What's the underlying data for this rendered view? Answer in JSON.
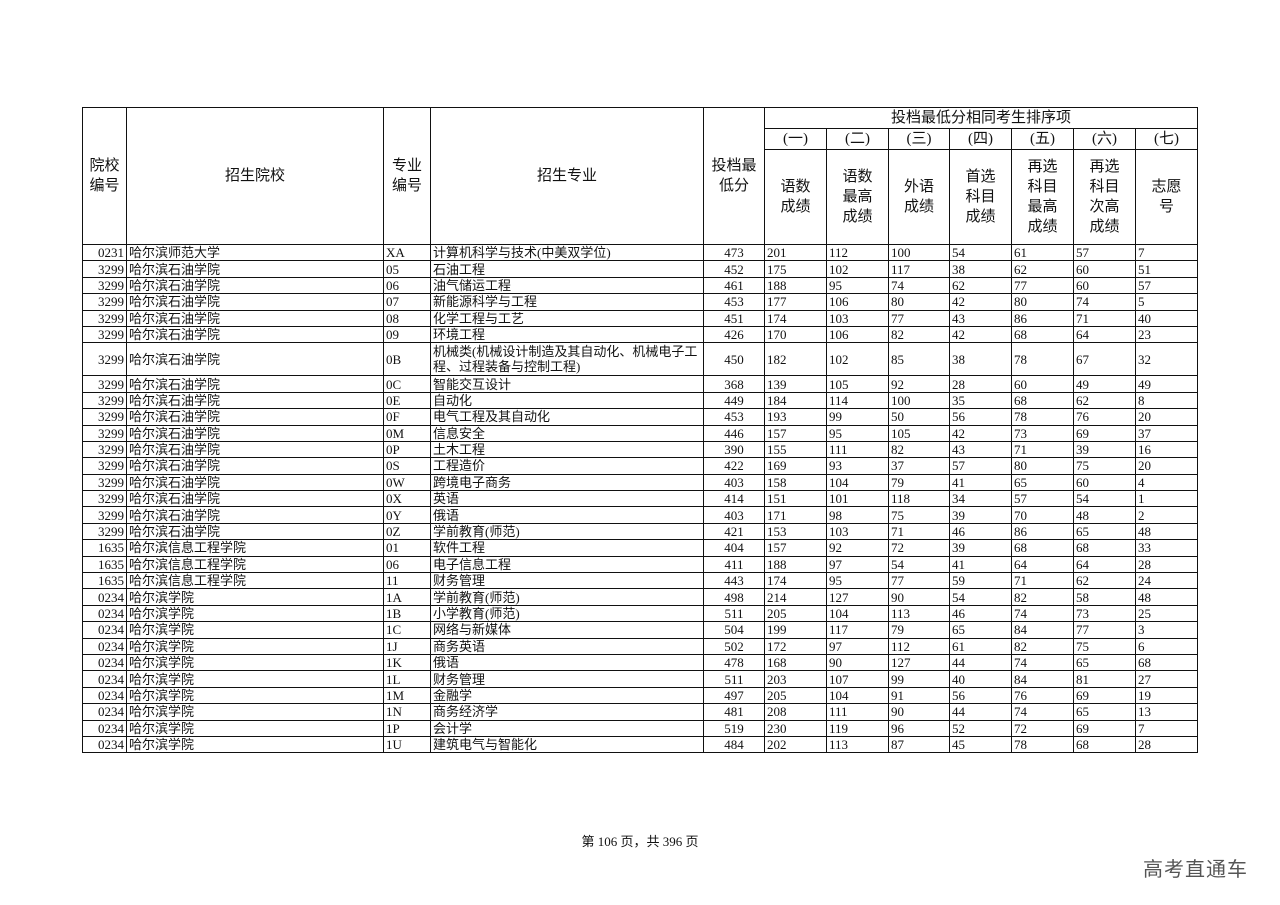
{
  "header": {
    "school_code": "院校编号",
    "school": "招生院校",
    "major_code": "专业编号",
    "major": "招生专业",
    "min_score": "投档最低分",
    "tiebreak_group": "投档最低分相同考生排序项",
    "tiebreak_orders": [
      "(一)",
      "(二)",
      "(三)",
      "(四)",
      "(五)",
      "(六)",
      "(七)"
    ],
    "tiebreak_labels": [
      "语数成绩",
      "语数最高成绩",
      "外语成绩",
      "首选科目成绩",
      "再选科目最高成绩",
      "再选科目次高成绩",
      "志愿号"
    ]
  },
  "rows": [
    [
      "0231",
      "哈尔滨师范大学",
      "XA",
      "计算机科学与技术(中美双学位)",
      "473",
      "201",
      "112",
      "100",
      "54",
      "61",
      "57",
      "7"
    ],
    [
      "3299",
      "哈尔滨石油学院",
      "05",
      "石油工程",
      "452",
      "175",
      "102",
      "117",
      "38",
      "62",
      "60",
      "51"
    ],
    [
      "3299",
      "哈尔滨石油学院",
      "06",
      "油气储运工程",
      "461",
      "188",
      "95",
      "74",
      "62",
      "77",
      "60",
      "57"
    ],
    [
      "3299",
      "哈尔滨石油学院",
      "07",
      "新能源科学与工程",
      "453",
      "177",
      "106",
      "80",
      "42",
      "80",
      "74",
      "5"
    ],
    [
      "3299",
      "哈尔滨石油学院",
      "08",
      "化学工程与工艺",
      "451",
      "174",
      "103",
      "77",
      "43",
      "86",
      "71",
      "40"
    ],
    [
      "3299",
      "哈尔滨石油学院",
      "09",
      "环境工程",
      "426",
      "170",
      "106",
      "82",
      "42",
      "68",
      "64",
      "23"
    ],
    [
      "3299",
      "哈尔滨石油学院",
      "0B",
      "机械类(机械设计制造及其自动化、机械电子工程、过程装备与控制工程)",
      "450",
      "182",
      "102",
      "85",
      "38",
      "78",
      "67",
      "32"
    ],
    [
      "3299",
      "哈尔滨石油学院",
      "0C",
      "智能交互设计",
      "368",
      "139",
      "105",
      "92",
      "28",
      "60",
      "49",
      "49"
    ],
    [
      "3299",
      "哈尔滨石油学院",
      "0E",
      "自动化",
      "449",
      "184",
      "114",
      "100",
      "35",
      "68",
      "62",
      "8"
    ],
    [
      "3299",
      "哈尔滨石油学院",
      "0F",
      "电气工程及其自动化",
      "453",
      "193",
      "99",
      "50",
      "56",
      "78",
      "76",
      "20"
    ],
    [
      "3299",
      "哈尔滨石油学院",
      "0M",
      "信息安全",
      "446",
      "157",
      "95",
      "105",
      "42",
      "73",
      "69",
      "37"
    ],
    [
      "3299",
      "哈尔滨石油学院",
      "0P",
      "土木工程",
      "390",
      "155",
      "111",
      "82",
      "43",
      "71",
      "39",
      "16"
    ],
    [
      "3299",
      "哈尔滨石油学院",
      "0S",
      "工程造价",
      "422",
      "169",
      "93",
      "37",
      "57",
      "80",
      "75",
      "20"
    ],
    [
      "3299",
      "哈尔滨石油学院",
      "0W",
      "跨境电子商务",
      "403",
      "158",
      "104",
      "79",
      "41",
      "65",
      "60",
      "4"
    ],
    [
      "3299",
      "哈尔滨石油学院",
      "0X",
      "英语",
      "414",
      "151",
      "101",
      "118",
      "34",
      "57",
      "54",
      "1"
    ],
    [
      "3299",
      "哈尔滨石油学院",
      "0Y",
      "俄语",
      "403",
      "171",
      "98",
      "75",
      "39",
      "70",
      "48",
      "2"
    ],
    [
      "3299",
      "哈尔滨石油学院",
      "0Z",
      "学前教育(师范)",
      "421",
      "153",
      "103",
      "71",
      "46",
      "86",
      "65",
      "48"
    ],
    [
      "1635",
      "哈尔滨信息工程学院",
      "01",
      "软件工程",
      "404",
      "157",
      "92",
      "72",
      "39",
      "68",
      "68",
      "33"
    ],
    [
      "1635",
      "哈尔滨信息工程学院",
      "06",
      "电子信息工程",
      "411",
      "188",
      "97",
      "54",
      "41",
      "64",
      "64",
      "28"
    ],
    [
      "1635",
      "哈尔滨信息工程学院",
      "11",
      "财务管理",
      "443",
      "174",
      "95",
      "77",
      "59",
      "71",
      "62",
      "24"
    ],
    [
      "0234",
      "哈尔滨学院",
      "1A",
      "学前教育(师范)",
      "498",
      "214",
      "127",
      "90",
      "54",
      "82",
      "58",
      "48"
    ],
    [
      "0234",
      "哈尔滨学院",
      "1B",
      "小学教育(师范)",
      "511",
      "205",
      "104",
      "113",
      "46",
      "74",
      "73",
      "25"
    ],
    [
      "0234",
      "哈尔滨学院",
      "1C",
      "网络与新媒体",
      "504",
      "199",
      "117",
      "79",
      "65",
      "84",
      "77",
      "3"
    ],
    [
      "0234",
      "哈尔滨学院",
      "1J",
      "商务英语",
      "502",
      "172",
      "97",
      "112",
      "61",
      "82",
      "75",
      "6"
    ],
    [
      "0234",
      "哈尔滨学院",
      "1K",
      "俄语",
      "478",
      "168",
      "90",
      "127",
      "44",
      "74",
      "65",
      "68"
    ],
    [
      "0234",
      "哈尔滨学院",
      "1L",
      "财务管理",
      "511",
      "203",
      "107",
      "99",
      "40",
      "84",
      "81",
      "27"
    ],
    [
      "0234",
      "哈尔滨学院",
      "1M",
      "金融学",
      "497",
      "205",
      "104",
      "91",
      "56",
      "76",
      "69",
      "19"
    ],
    [
      "0234",
      "哈尔滨学院",
      "1N",
      "商务经济学",
      "481",
      "208",
      "111",
      "90",
      "44",
      "74",
      "65",
      "13"
    ],
    [
      "0234",
      "哈尔滨学院",
      "1P",
      "会计学",
      "519",
      "230",
      "119",
      "96",
      "52",
      "72",
      "69",
      "7"
    ],
    [
      "0234",
      "哈尔滨学院",
      "1U",
      "建筑电气与智能化",
      "484",
      "202",
      "113",
      "87",
      "45",
      "78",
      "68",
      "28"
    ]
  ],
  "footer": "第 106 页，共 396 页",
  "watermark": "高考直通车"
}
